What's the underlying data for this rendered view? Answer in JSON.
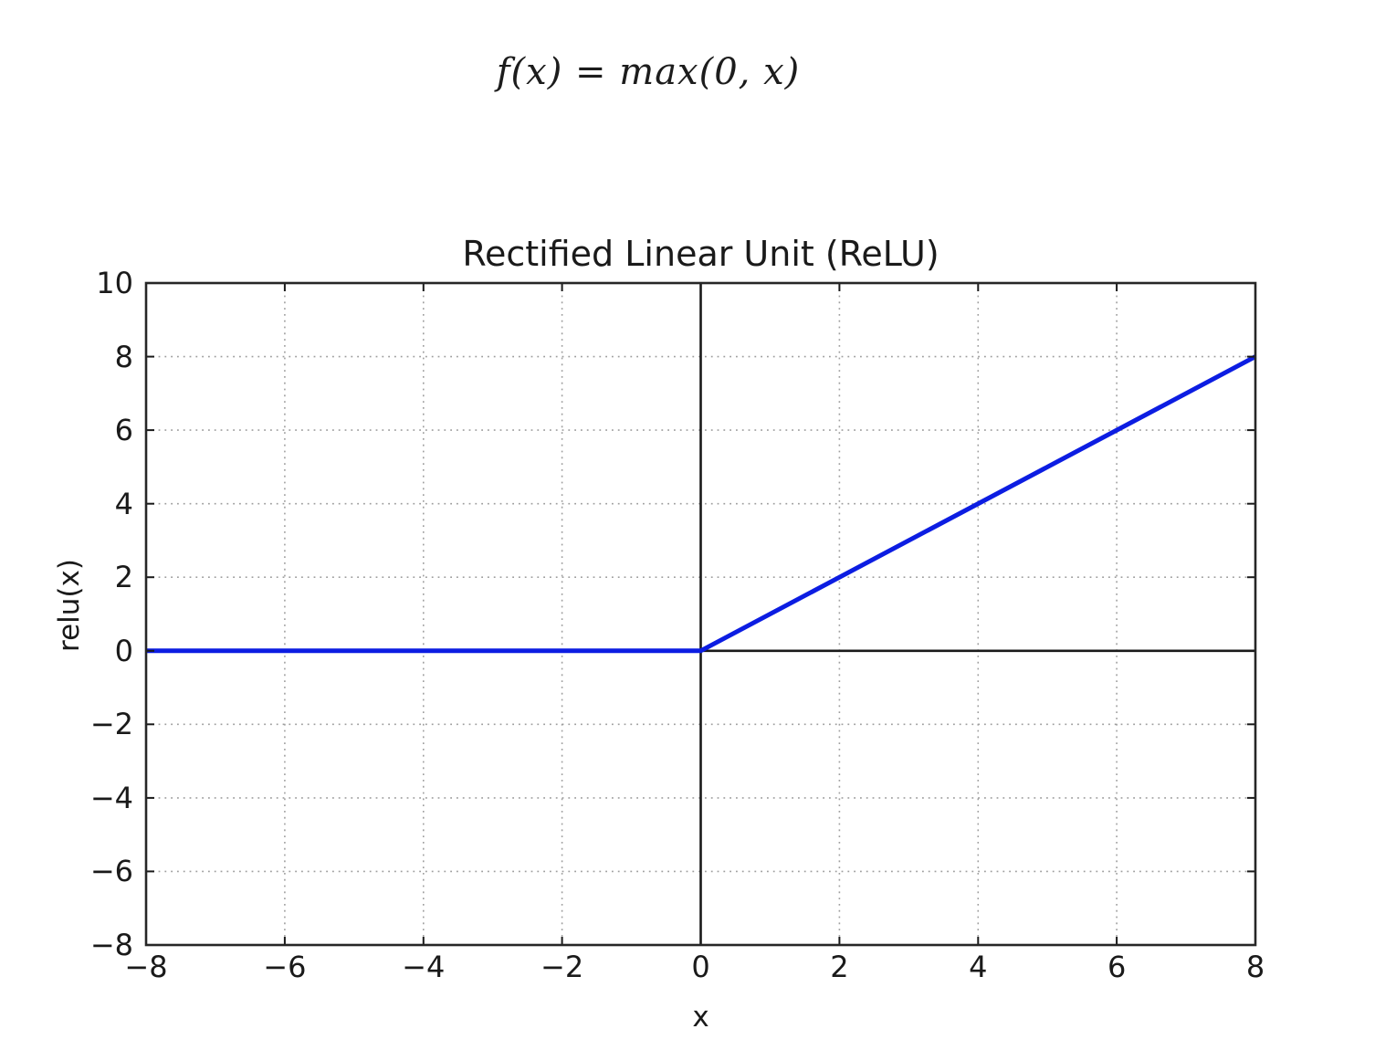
{
  "formula": {
    "text": "f(x) = max(0, x)"
  },
  "chart_data": {
    "type": "line",
    "title": "Rectified Linear Unit (ReLU)",
    "xlabel": "x",
    "ylabel": "relu(x)",
    "xlim": [
      -8,
      8
    ],
    "ylim": [
      -8,
      10
    ],
    "x_ticks": [
      -8,
      -6,
      -4,
      -2,
      0,
      2,
      4,
      6,
      8
    ],
    "y_ticks": [
      -8,
      -6,
      -4,
      -2,
      0,
      2,
      4,
      6,
      8,
      10
    ],
    "grid": true,
    "grid_style": "dotted",
    "legend": "none",
    "axline_x": 0,
    "axline_y": 0,
    "series": [
      {
        "name": "relu",
        "color": "#0c1de2",
        "x": [
          -8,
          0,
          8
        ],
        "y": [
          0,
          0,
          8
        ]
      }
    ],
    "colors": {
      "line": "#0c1de2",
      "axis": "#1a1a1a",
      "frame": "#262626",
      "grid": "#9e9e9e",
      "background": "#ffffff"
    }
  }
}
